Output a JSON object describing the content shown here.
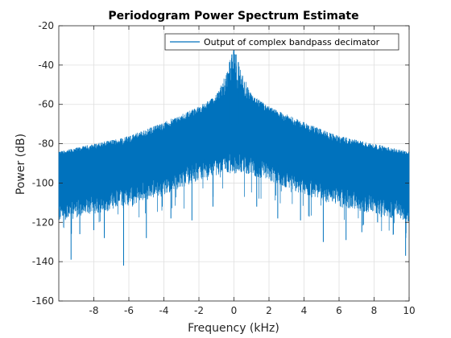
{
  "chart_data": {
    "type": "line",
    "title": "Periodogram Power Spectrum Estimate",
    "xlabel": "Frequency (kHz)",
    "ylabel": "Power (dB)",
    "xlim": [
      -10,
      10
    ],
    "ylim": [
      -160,
      -20
    ],
    "x_ticks": [
      -8,
      -6,
      -4,
      -2,
      0,
      2,
      4,
      6,
      8,
      10
    ],
    "y_ticks": [
      -20,
      -40,
      -60,
      -80,
      -100,
      -120,
      -140,
      -160
    ],
    "grid": true,
    "legend_position": "top-right",
    "series": [
      {
        "name": "Output of complex bandpass decimator",
        "color": "#0072BD",
        "upper_envelope": {
          "x": [
            -10,
            -8,
            -6,
            -4,
            -2,
            -1,
            -0.3,
            0,
            0.3,
            1,
            2,
            4,
            6,
            8,
            10
          ],
          "y": [
            -84,
            -80,
            -76,
            -69,
            -61,
            -55,
            -40,
            -31,
            -40,
            -55,
            -61,
            -69,
            -76,
            -80,
            -84
          ]
        },
        "dense_band": {
          "x": [
            -10,
            -8,
            -6,
            -4,
            -2,
            -1,
            0,
            1,
            2,
            4,
            6,
            8,
            10
          ],
          "upper": [
            -86,
            -83,
            -80,
            -73,
            -65,
            -60,
            -52,
            -60,
            -65,
            -73,
            -80,
            -83,
            -86
          ],
          "lower": [
            -110,
            -106,
            -102,
            -96,
            -89,
            -86,
            -84,
            -86,
            -89,
            -96,
            -102,
            -106,
            -110
          ]
        },
        "deep_dips": {
          "x": [
            -9.3,
            -8.8,
            -8.0,
            -7.4,
            -6.3,
            -5.0,
            -3.6,
            -2.4,
            -1.2,
            1.3,
            2.5,
            3.8,
            5.1,
            6.4,
            7.3,
            8.2,
            9.1,
            9.8
          ],
          "y": [
            -139,
            -126,
            -124,
            -128,
            -142,
            -128,
            -118,
            -119,
            -112,
            -112,
            -118,
            -119,
            -130,
            -129,
            -125,
            -120,
            -126,
            -137
          ]
        }
      }
    ]
  }
}
